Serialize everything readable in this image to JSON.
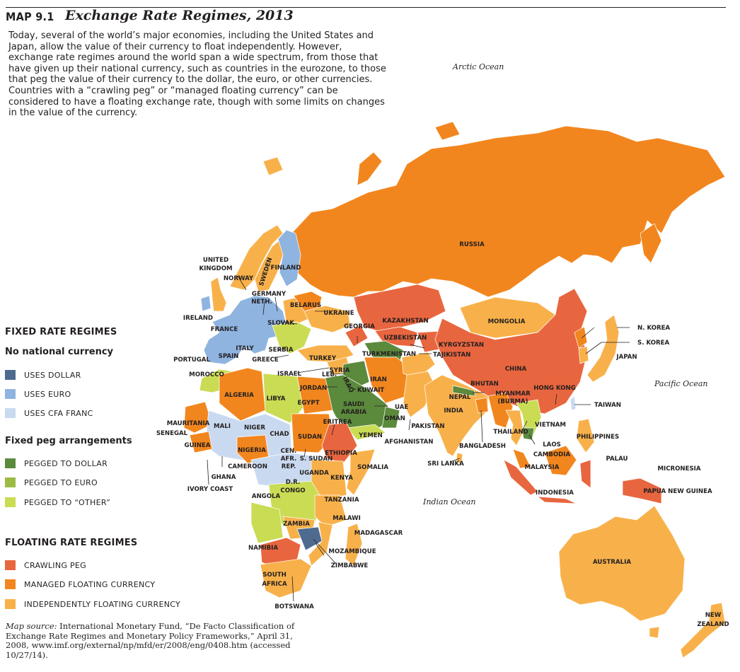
{
  "header": {
    "map_label": "MAP 9.1",
    "title": "Exchange Rate Regimes, 2013",
    "intro": "Today, several of the world’s major economies, including the United States and Japan, allow the value of their currency to float independently. However, exchange rate regimes around the world span a wide spectrum, from those that have given up their national currency, such as countries in the eurozone, to those that peg the value of their currency to the dollar, the euro, or other currencies. Countries with a “crawling peg” or “managed floating currency” can be considered to have a floating exchange rate, though with some limits on changes in the value of the currency."
  },
  "legend": {
    "fixed_heading": "FIXED RATE REGIMES",
    "no_currency_heading": "No national currency",
    "no_currency_items": [
      {
        "label": "USES DOLLAR",
        "color": "#4f6a8f"
      },
      {
        "label": "USES EURO",
        "color": "#8fb4e0"
      },
      {
        "label": "USES CFA FRANC",
        "color": "#c9daf0"
      }
    ],
    "peg_heading": "Fixed peg arrangements",
    "peg_items": [
      {
        "label": "PEGGED TO DOLLAR",
        "color": "#5b8a3c"
      },
      {
        "label": "PEGGED TO EURO",
        "color": "#9bbb45"
      },
      {
        "label": "PEGGED TO “OTHER”",
        "color": "#cadc54"
      }
    ],
    "floating_heading": "FLOATING RATE REGIMES",
    "floating_items": [
      {
        "label": "CRAWLING PEG",
        "color": "#e8663f"
      },
      {
        "label": "MANAGED FLOATING CURRENCY",
        "color": "#f2861e"
      },
      {
        "label": "INDEPENDENTLY FLOATING CURRENCY",
        "color": "#f8b14a"
      }
    ]
  },
  "oceans": {
    "arctic": "Arctic Ocean",
    "pacific": "Pacific Ocean",
    "indian": "Indian Ocean"
  },
  "countries": {
    "russia": "RUSSIA",
    "china": "CHINA",
    "mongolia": "MONGOLIA",
    "kazakhstan": "KAZAKHSTAN",
    "uzbekistan": "UZBEKISTAN",
    "turkmenistan": "TURKMENISTAN",
    "kyrgyzstan": "KYRGYZSTAN",
    "tajikistan": "TAJIKISTAN",
    "afghanistan": "AFGHANISTAN",
    "pakistan": "PAKISTAN",
    "india": "INDIA",
    "nepal": "NEPAL",
    "bhutan": "BHUTAN",
    "bangladesh": "BANGLADESH",
    "sri_lanka": "SRI LANKA",
    "myanmar_1": "MYANMAR",
    "myanmar_2": "(BURMA)",
    "thailand": "THAILAND",
    "laos": "LAOS",
    "vietnam": "VIETNAM",
    "cambodia": "CAMBODIA",
    "malaysia": "MALAYSIA",
    "indonesia": "INDONESIA",
    "philippines": "PHILIPPINES",
    "palau": "PALAU",
    "micronesia": "MICRONESIA",
    "papua_new_guinea": "PAPUA NEW GUINEA",
    "australia": "AUSTRALIA",
    "new_zealand_1": "NEW",
    "new_zealand_2": "ZEALAND",
    "japan": "JAPAN",
    "north_korea": "N. KOREA",
    "south_korea": "S. KOREA",
    "taiwan": "TAIWAN",
    "hong_kong": "HONG KONG",
    "iran": "IRAN",
    "iraq": "IRAQ",
    "saudi_arabia_1": "SAUDI",
    "saudi_arabia_2": "ARABIA",
    "kuwait": "KUWAIT",
    "uae": "UAE",
    "oman": "OMAN",
    "yemen": "YEMEN",
    "jordan": "JORDAN",
    "israel": "ISRAEL",
    "lebanon": "LEB.",
    "syria": "SYRIA",
    "turkey": "TURKEY",
    "georgia": "GEORGIA",
    "ukraine": "UKRAINE",
    "belarus": "BELARUS",
    "finland": "FINLAND",
    "sweden": "SWEDEN",
    "norway": "NORWAY",
    "uk_1": "UNITED",
    "uk_2": "KINGDOM",
    "ireland": "IRELAND",
    "netherlands": "NETH.",
    "germany": "GERMANY",
    "france": "FRANCE",
    "spain": "SPAIN",
    "portugal": "PORTUGAL",
    "italy": "ITALY",
    "greece": "GREECE",
    "serbia": "SERBIA",
    "slovakia": "SLOVAK",
    "morocco": "MOROCCO",
    "algeria": "ALGERIA",
    "libya": "LIBYA",
    "egypt": "EGYPT",
    "mauritania": "MAURITANIA",
    "senegal": "SENEGAL",
    "mali": "MALI",
    "niger": "NIGER",
    "chad": "CHAD",
    "sudan": "SUDAN",
    "eritrea": "ERITREA",
    "ethiopia": "ETHIOPIA",
    "somalia": "SOMALIA",
    "guinea": "GUINEA",
    "nigeria": "NIGERIA",
    "cameroon": "CAMEROON",
    "car_1": "CEN.",
    "car_2": "AFR.",
    "car_3": "REP.",
    "south_sudan": "S. SUDAN",
    "ghana": "GHANA",
    "ivory_coast": "IVORY COAST",
    "uganda": "UGANDA",
    "kenya": "KENYA",
    "drc_1": "D.R.",
    "drc_2": "CONGO",
    "tanzania": "TANZANIA",
    "angola": "ANGOLA",
    "zambia": "ZAMBIA",
    "malawi": "MALAWI",
    "madagascar": "MADAGASCAR",
    "namibia": "NAMIBIA",
    "mozambique": "MOZAMBIQUE",
    "zimbabwe": "ZIMBABWE",
    "south_africa_1": "SOUTH",
    "south_africa_2": "AFRICA",
    "botswana": "BOTSWANA"
  },
  "source": {
    "label": "Map source:",
    "text": "International Monetary Fund, “De Facto Classification of Exchange Rate Regimes and Monetary Policy Frameworks,” April 31, 2008, www.imf.org/external/np/mfd/er/2008/eng/0408.htm (accessed 10/27/14)."
  }
}
